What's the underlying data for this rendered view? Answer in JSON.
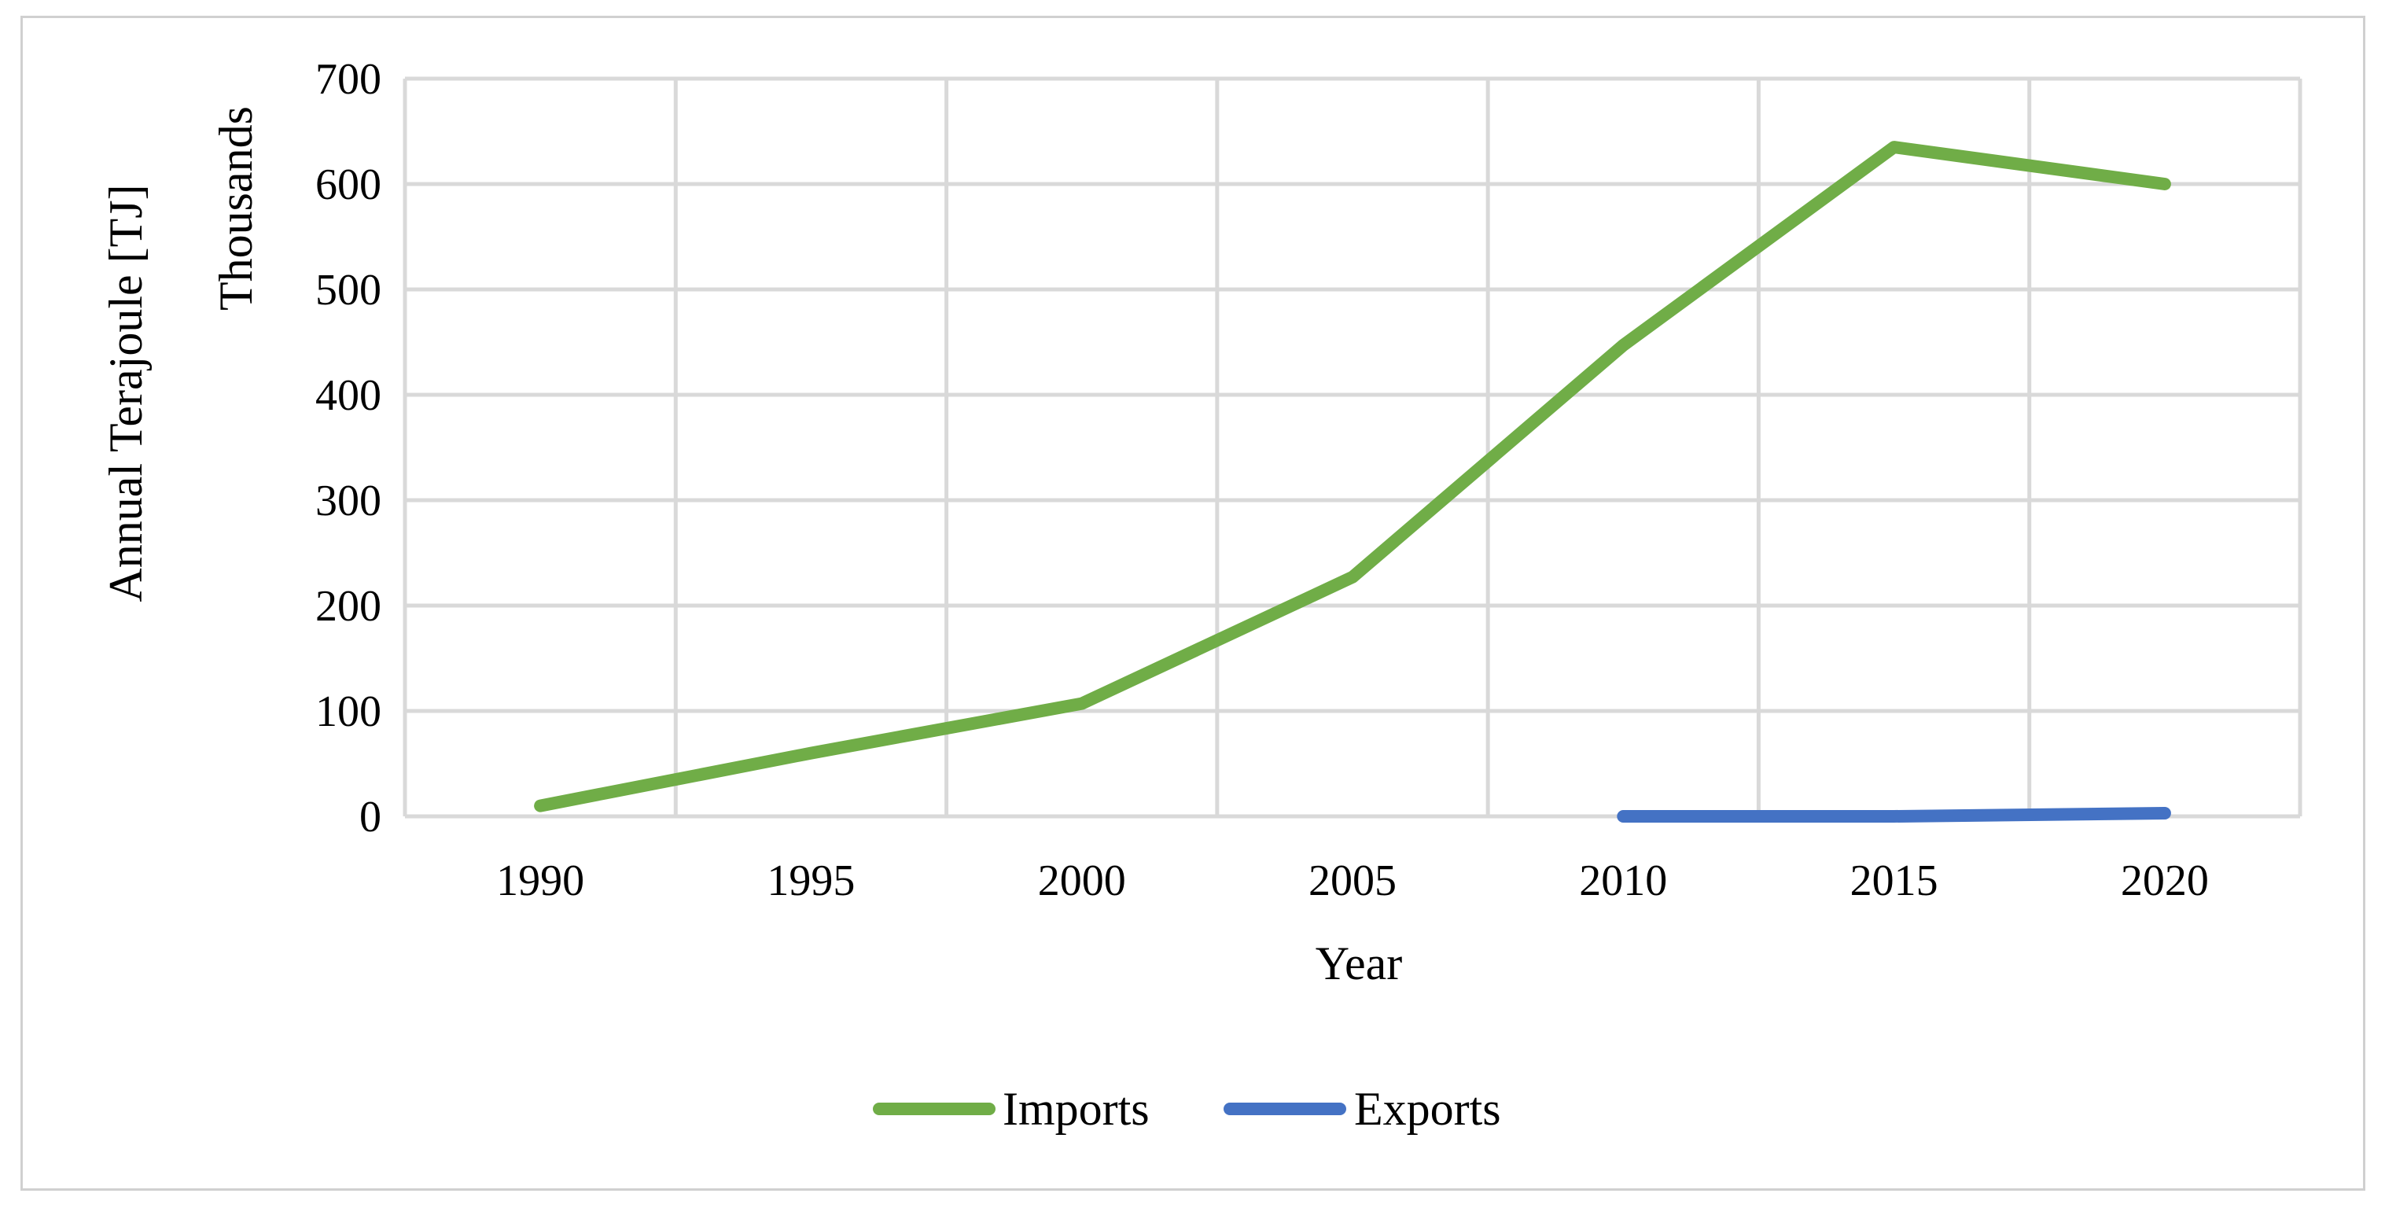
{
  "chart_data": {
    "type": "line",
    "title": "",
    "xlabel": "Year",
    "ylabel": "Annual Terajoule [TJ]",
    "yunit_label": "Thousands",
    "categories": [
      "1990",
      "1995",
      "2000",
      "2005",
      "2010",
      "2015",
      "2020"
    ],
    "ylim": [
      0,
      700
    ],
    "yticks": [
      "0",
      "100",
      "200",
      "300",
      "400",
      "500",
      "600",
      "700"
    ],
    "grid": true,
    "legend_position": "bottom",
    "series": [
      {
        "name": "Imports",
        "color": "#70ad47",
        "x": [
          "1990",
          "1995",
          "2000",
          "2005",
          "2010",
          "2015",
          "2020"
        ],
        "values": [
          10,
          60,
          107,
          227,
          447,
          635,
          600
        ]
      },
      {
        "name": "Exports",
        "color": "#4472c4",
        "x": [
          "2010",
          "2015",
          "2020"
        ],
        "values": [
          0,
          0,
          3
        ]
      }
    ]
  }
}
